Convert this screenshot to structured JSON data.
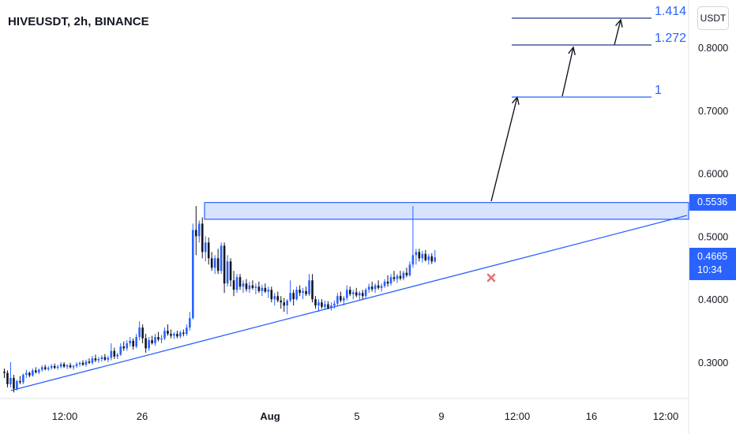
{
  "header": {
    "title": "HIVEUSDT, 2h, BINANCE"
  },
  "toolbar": {
    "currency_label": "USDT"
  },
  "price_tags": {
    "resistance": "0.5536",
    "last_price": "0.4665",
    "countdown": "10:34"
  },
  "fib_levels": [
    {
      "label": "1",
      "value": 0.72
    },
    {
      "label": "1.272",
      "value": 0.805
    },
    {
      "label": "1.414",
      "value": 0.849
    }
  ],
  "colors": {
    "accent": "#2962ff",
    "up": "#2962ff",
    "down": "#131722",
    "marker": "#e57373"
  },
  "chart_data": {
    "type": "candlestick",
    "y_axis": {
      "min": 0.25,
      "max": 0.86,
      "ticks": [
        "0.8000",
        "0.7000",
        "0.6000",
        "0.5000",
        "0.4000",
        "0.3000"
      ],
      "tick_values": [
        0.8,
        0.7,
        0.6,
        0.5,
        0.4,
        0.3
      ]
    },
    "x_axis": {
      "ticks": [
        "12:00",
        "26",
        "Aug",
        "5",
        "9",
        "12:00",
        "16",
        "12:00"
      ],
      "tick_bars": [
        19,
        41,
        85,
        110,
        134,
        157,
        181,
        204
      ]
    },
    "resistance_zone": {
      "top": 0.5536,
      "bottom": 0.527,
      "start_bar": 0
    },
    "trendline": {
      "start": {
        "bar": 0,
        "value": 0.255
      },
      "end": {
        "bar": 216,
        "value": 0.528
      }
    },
    "candles": [
      [
        0.285,
        0.29,
        0.275,
        0.283
      ],
      [
        0.283,
        0.287,
        0.26,
        0.265
      ],
      [
        0.265,
        0.3,
        0.26,
        0.275
      ],
      [
        0.275,
        0.28,
        0.252,
        0.258
      ],
      [
        0.258,
        0.272,
        0.255,
        0.27
      ],
      [
        0.27,
        0.278,
        0.265,
        0.268
      ],
      [
        0.268,
        0.282,
        0.265,
        0.28
      ],
      [
        0.28,
        0.288,
        0.275,
        0.283
      ],
      [
        0.283,
        0.285,
        0.276,
        0.279
      ],
      [
        0.279,
        0.29,
        0.277,
        0.287
      ],
      [
        0.287,
        0.292,
        0.282,
        0.284
      ],
      [
        0.284,
        0.29,
        0.281,
        0.288
      ],
      [
        0.288,
        0.295,
        0.285,
        0.292
      ],
      [
        0.292,
        0.296,
        0.287,
        0.289
      ],
      [
        0.289,
        0.294,
        0.286,
        0.291
      ],
      [
        0.291,
        0.297,
        0.288,
        0.294
      ],
      [
        0.294,
        0.298,
        0.289,
        0.291
      ],
      [
        0.291,
        0.296,
        0.288,
        0.293
      ],
      [
        0.293,
        0.3,
        0.29,
        0.297
      ],
      [
        0.297,
        0.3,
        0.291,
        0.293
      ],
      [
        0.293,
        0.297,
        0.289,
        0.295
      ],
      [
        0.295,
        0.299,
        0.29,
        0.292
      ],
      [
        0.292,
        0.296,
        0.288,
        0.294
      ],
      [
        0.294,
        0.3,
        0.291,
        0.297
      ],
      [
        0.297,
        0.301,
        0.293,
        0.299
      ],
      [
        0.299,
        0.303,
        0.294,
        0.296
      ],
      [
        0.296,
        0.304,
        0.293,
        0.301
      ],
      [
        0.301,
        0.306,
        0.297,
        0.299
      ],
      [
        0.299,
        0.31,
        0.296,
        0.306
      ],
      [
        0.306,
        0.312,
        0.3,
        0.303
      ],
      [
        0.303,
        0.308,
        0.299,
        0.305
      ],
      [
        0.305,
        0.311,
        0.301,
        0.308
      ],
      [
        0.308,
        0.313,
        0.302,
        0.304
      ],
      [
        0.304,
        0.31,
        0.3,
        0.307
      ],
      [
        0.307,
        0.33,
        0.303,
        0.318
      ],
      [
        0.318,
        0.323,
        0.305,
        0.309
      ],
      [
        0.309,
        0.315,
        0.305,
        0.312
      ],
      [
        0.312,
        0.33,
        0.31,
        0.325
      ],
      [
        0.325,
        0.333,
        0.318,
        0.322
      ],
      [
        0.322,
        0.335,
        0.318,
        0.33
      ],
      [
        0.33,
        0.34,
        0.325,
        0.334
      ],
      [
        0.334,
        0.338,
        0.32,
        0.325
      ],
      [
        0.325,
        0.345,
        0.322,
        0.34
      ],
      [
        0.34,
        0.365,
        0.335,
        0.355
      ],
      [
        0.355,
        0.36,
        0.33,
        0.338
      ],
      [
        0.338,
        0.345,
        0.315,
        0.322
      ],
      [
        0.322,
        0.34,
        0.318,
        0.335
      ],
      [
        0.335,
        0.342,
        0.328,
        0.33
      ],
      [
        0.33,
        0.345,
        0.326,
        0.34
      ],
      [
        0.34,
        0.348,
        0.333,
        0.336
      ],
      [
        0.336,
        0.343,
        0.33,
        0.338
      ],
      [
        0.338,
        0.355,
        0.335,
        0.35
      ],
      [
        0.35,
        0.36,
        0.342,
        0.345
      ],
      [
        0.345,
        0.352,
        0.338,
        0.342
      ],
      [
        0.342,
        0.348,
        0.337,
        0.345
      ],
      [
        0.345,
        0.35,
        0.338,
        0.341
      ],
      [
        0.341,
        0.35,
        0.338,
        0.347
      ],
      [
        0.347,
        0.352,
        0.341,
        0.345
      ],
      [
        0.345,
        0.36,
        0.342,
        0.355
      ],
      [
        0.355,
        0.38,
        0.35,
        0.37
      ],
      [
        0.37,
        0.52,
        0.368,
        0.51
      ],
      [
        0.51,
        0.548,
        0.47,
        0.5
      ],
      [
        0.5,
        0.525,
        0.49,
        0.52
      ],
      [
        0.52,
        0.53,
        0.465,
        0.475
      ],
      [
        0.475,
        0.5,
        0.46,
        0.49
      ],
      [
        0.49,
        0.498,
        0.455,
        0.465
      ],
      [
        0.465,
        0.475,
        0.445,
        0.45
      ],
      [
        0.45,
        0.47,
        0.44,
        0.465
      ],
      [
        0.465,
        0.48,
        0.44,
        0.445
      ],
      [
        0.445,
        0.49,
        0.44,
        0.485
      ],
      [
        0.485,
        0.49,
        0.41,
        0.425
      ],
      [
        0.425,
        0.47,
        0.42,
        0.46
      ],
      [
        0.46,
        0.465,
        0.42,
        0.43
      ],
      [
        0.43,
        0.445,
        0.405,
        0.415
      ],
      [
        0.415,
        0.44,
        0.41,
        0.435
      ],
      [
        0.435,
        0.44,
        0.415,
        0.42
      ],
      [
        0.42,
        0.43,
        0.41,
        0.425
      ],
      [
        0.425,
        0.432,
        0.412,
        0.416
      ],
      [
        0.416,
        0.428,
        0.41,
        0.422
      ],
      [
        0.422,
        0.43,
        0.415,
        0.418
      ],
      [
        0.418,
        0.425,
        0.408,
        0.42
      ],
      [
        0.42,
        0.428,
        0.41,
        0.413
      ],
      [
        0.413,
        0.423,
        0.405,
        0.418
      ],
      [
        0.418,
        0.425,
        0.41,
        0.412
      ],
      [
        0.412,
        0.42,
        0.402,
        0.415
      ],
      [
        0.415,
        0.42,
        0.395,
        0.4
      ],
      [
        0.4,
        0.41,
        0.39,
        0.405
      ],
      [
        0.405,
        0.412,
        0.395,
        0.398
      ],
      [
        0.398,
        0.405,
        0.385,
        0.395
      ],
      [
        0.395,
        0.402,
        0.38,
        0.39
      ],
      [
        0.39,
        0.4,
        0.376,
        0.398
      ],
      [
        0.398,
        0.43,
        0.395,
        0.41
      ],
      [
        0.41,
        0.415,
        0.39,
        0.4
      ],
      [
        0.4,
        0.42,
        0.398,
        0.415
      ],
      [
        0.415,
        0.422,
        0.405,
        0.41
      ],
      [
        0.41,
        0.418,
        0.4,
        0.413
      ],
      [
        0.413,
        0.42,
        0.405,
        0.408
      ],
      [
        0.408,
        0.44,
        0.405,
        0.43
      ],
      [
        0.43,
        0.44,
        0.395,
        0.4
      ],
      [
        0.4,
        0.405,
        0.385,
        0.39
      ],
      [
        0.39,
        0.4,
        0.38,
        0.395
      ],
      [
        0.395,
        0.4,
        0.385,
        0.388
      ],
      [
        0.388,
        0.398,
        0.383,
        0.392
      ],
      [
        0.392,
        0.397,
        0.384,
        0.386
      ],
      [
        0.386,
        0.395,
        0.382,
        0.39
      ],
      [
        0.39,
        0.398,
        0.385,
        0.393
      ],
      [
        0.393,
        0.41,
        0.39,
        0.405
      ],
      [
        0.405,
        0.412,
        0.395,
        0.398
      ],
      [
        0.398,
        0.405,
        0.39,
        0.402
      ],
      [
        0.402,
        0.422,
        0.398,
        0.415
      ],
      [
        0.415,
        0.42,
        0.405,
        0.408
      ],
      [
        0.408,
        0.415,
        0.4,
        0.411
      ],
      [
        0.411,
        0.418,
        0.403,
        0.406
      ],
      [
        0.406,
        0.413,
        0.398,
        0.41
      ],
      [
        0.41,
        0.415,
        0.4,
        0.405
      ],
      [
        0.405,
        0.418,
        0.402,
        0.415
      ],
      [
        0.415,
        0.425,
        0.41,
        0.42
      ],
      [
        0.42,
        0.428,
        0.412,
        0.416
      ],
      [
        0.416,
        0.425,
        0.41,
        0.422
      ],
      [
        0.422,
        0.43,
        0.415,
        0.418
      ],
      [
        0.418,
        0.425,
        0.412,
        0.421
      ],
      [
        0.421,
        0.432,
        0.418,
        0.428
      ],
      [
        0.428,
        0.438,
        0.42,
        0.425
      ],
      [
        0.425,
        0.44,
        0.422,
        0.435
      ],
      [
        0.435,
        0.445,
        0.428,
        0.432
      ],
      [
        0.432,
        0.44,
        0.426,
        0.437
      ],
      [
        0.437,
        0.445,
        0.43,
        0.433
      ],
      [
        0.433,
        0.445,
        0.43,
        0.442
      ],
      [
        0.442,
        0.45,
        0.435,
        0.438
      ],
      [
        0.438,
        0.46,
        0.436,
        0.455
      ],
      [
        0.455,
        0.548,
        0.45,
        0.47
      ],
      [
        0.47,
        0.48,
        0.455,
        0.475
      ],
      [
        0.475,
        0.48,
        0.46,
        0.465
      ],
      [
        0.465,
        0.477,
        0.458,
        0.472
      ],
      [
        0.472,
        0.478,
        0.46,
        0.462
      ],
      [
        0.462,
        0.472,
        0.455,
        0.468
      ],
      [
        0.468,
        0.473,
        0.456,
        0.46
      ],
      [
        0.46,
        0.478,
        0.458,
        0.4665
      ]
    ]
  }
}
